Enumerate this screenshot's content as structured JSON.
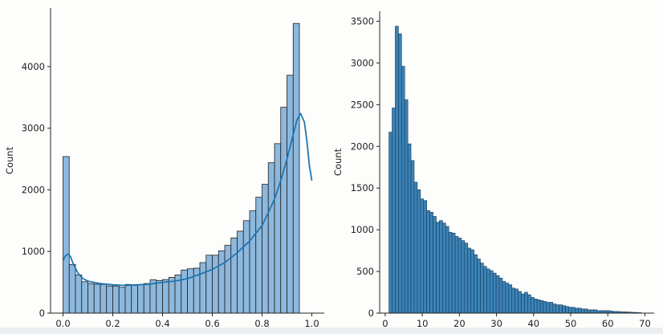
{
  "chart_data": [
    {
      "type": "bar",
      "subtype": "histogram_with_kde",
      "xlabel": "",
      "ylabel": "Count",
      "xlim": [
        -0.05,
        1.05
      ],
      "ylim": [
        0,
        4950
      ],
      "x_ticks": [
        0.0,
        0.2,
        0.4,
        0.6,
        0.8,
        1.0
      ],
      "x_tick_labels": [
        "0.0",
        "0.2",
        "0.4",
        "0.6",
        "0.8",
        "1.0"
      ],
      "y_ticks": [
        0,
        1000,
        2000,
        3000,
        4000
      ],
      "y_tick_labels": [
        "0",
        "1000",
        "2000",
        "3000",
        "4000"
      ],
      "bin_start": 0.0,
      "bin_width": 0.025,
      "values": [
        2540,
        790,
        620,
        510,
        480,
        470,
        465,
        440,
        440,
        420,
        465,
        450,
        460,
        480,
        540,
        530,
        545,
        580,
        620,
        700,
        720,
        730,
        820,
        940,
        940,
        1010,
        1100,
        1220,
        1330,
        1500,
        1660,
        1880,
        2090,
        2440,
        2750,
        3340,
        3860,
        4700
      ],
      "kde": {
        "x": [
          0.0,
          0.01,
          0.02,
          0.03,
          0.04,
          0.06,
          0.08,
          0.1,
          0.15,
          0.2,
          0.25,
          0.3,
          0.35,
          0.4,
          0.45,
          0.5,
          0.55,
          0.6,
          0.65,
          0.7,
          0.75,
          0.8,
          0.85,
          0.875,
          0.9,
          0.925,
          0.94,
          0.955,
          0.97,
          0.98,
          0.99,
          1.0
        ],
        "y": [
          850,
          930,
          960,
          920,
          810,
          650,
          560,
          520,
          480,
          460,
          450,
          460,
          470,
          500,
          520,
          560,
          630,
          710,
          820,
          980,
          1170,
          1420,
          1850,
          2150,
          2500,
          2900,
          3130,
          3240,
          3100,
          2800,
          2400,
          2150
        ]
      },
      "colors": {
        "bar_fill": "#8db8dd",
        "bar_edge": "#1f1f1f",
        "kde_line": "#1f77b4"
      },
      "grid": false
    },
    {
      "type": "bar",
      "subtype": "histogram",
      "xlabel": "",
      "ylabel": "Count",
      "xlim": [
        -1.5,
        72.5
      ],
      "ylim": [
        0,
        3620
      ],
      "x_ticks": [
        0,
        10,
        20,
        30,
        40,
        50,
        60,
        70
      ],
      "x_tick_labels": [
        "0",
        "10",
        "20",
        "30",
        "40",
        "50",
        "60",
        "70"
      ],
      "y_ticks": [
        0,
        500,
        1000,
        1500,
        2000,
        2500,
        3000,
        3500
      ],
      "y_tick_labels": [
        "0",
        "500",
        "1000",
        "1500",
        "2000",
        "2500",
        "3000",
        "3500"
      ],
      "bin_start": 1.0,
      "bin_width": 0.85,
      "values": [
        2170,
        2460,
        3440,
        3350,
        2960,
        2560,
        2030,
        1830,
        1570,
        1480,
        1370,
        1350,
        1230,
        1210,
        1160,
        1090,
        1110,
        1080,
        1040,
        970,
        960,
        920,
        900,
        870,
        840,
        780,
        760,
        700,
        650,
        600,
        560,
        530,
        510,
        480,
        450,
        420,
        380,
        360,
        340,
        300,
        290,
        260,
        230,
        250,
        220,
        190,
        170,
        160,
        150,
        140,
        130,
        130,
        110,
        100,
        100,
        90,
        80,
        70,
        70,
        60,
        60,
        50,
        50,
        40,
        40,
        40,
        30,
        30,
        30,
        30,
        25,
        20,
        20,
        18,
        15,
        15,
        12,
        10,
        8,
        6
      ],
      "colors": {
        "bar_fill": "#3a83b8",
        "bar_edge": "#1c3a52"
      },
      "grid": false
    }
  ]
}
